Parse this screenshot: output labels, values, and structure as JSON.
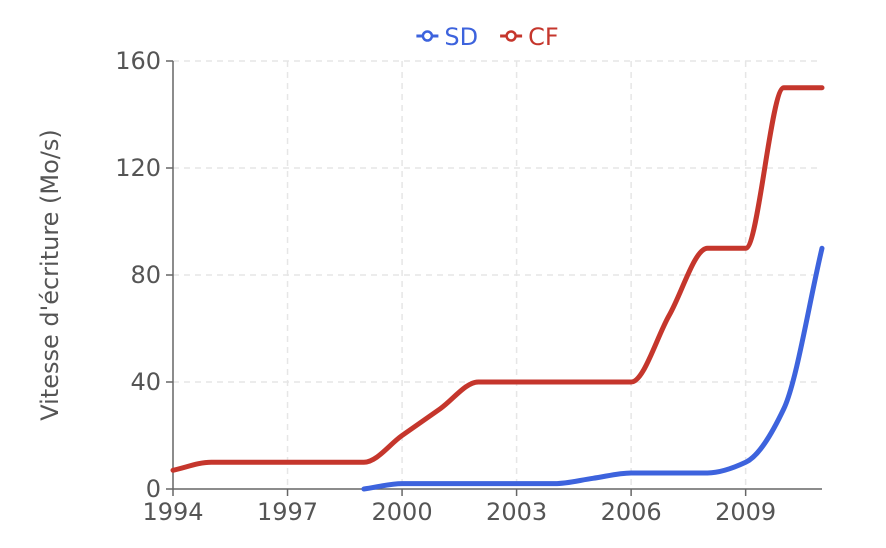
{
  "chart_data": {
    "type": "line",
    "ylabel": "Vitesse d'écriture (Mo/s)",
    "xlim": [
      1994,
      2011
    ],
    "ylim": [
      0,
      160
    ],
    "x_ticks": [
      1994,
      1997,
      2000,
      2003,
      2006,
      2009
    ],
    "y_ticks": [
      0,
      40,
      80,
      120,
      160
    ],
    "grid": true,
    "legend_position": "top-center",
    "series": [
      {
        "name": "SD",
        "color": "#3d63dd",
        "points": [
          {
            "x": 1999,
            "y": 0
          },
          {
            "x": 2000,
            "y": 2
          },
          {
            "x": 2001,
            "y": 2
          },
          {
            "x": 2002,
            "y": 2
          },
          {
            "x": 2003,
            "y": 2
          },
          {
            "x": 2004,
            "y": 2
          },
          {
            "x": 2005,
            "y": 4
          },
          {
            "x": 2006,
            "y": 6
          },
          {
            "x": 2007,
            "y": 6
          },
          {
            "x": 2008,
            "y": 6
          },
          {
            "x": 2009,
            "y": 10
          },
          {
            "x": 2010,
            "y": 30
          },
          {
            "x": 2011,
            "y": 90
          }
        ]
      },
      {
        "name": "CF",
        "color": "#c5362c",
        "points": [
          {
            "x": 1994,
            "y": 7
          },
          {
            "x": 1995,
            "y": 10
          },
          {
            "x": 1996,
            "y": 10
          },
          {
            "x": 1997,
            "y": 10
          },
          {
            "x": 1998,
            "y": 10
          },
          {
            "x": 1999,
            "y": 10
          },
          {
            "x": 2000,
            "y": 20
          },
          {
            "x": 2001,
            "y": 30
          },
          {
            "x": 2002,
            "y": 40
          },
          {
            "x": 2003,
            "y": 40
          },
          {
            "x": 2004,
            "y": 40
          },
          {
            "x": 2005,
            "y": 40
          },
          {
            "x": 2006,
            "y": 40
          },
          {
            "x": 2007,
            "y": 65
          },
          {
            "x": 2008,
            "y": 90
          },
          {
            "x": 2009,
            "y": 90
          },
          {
            "x": 2010,
            "y": 150
          },
          {
            "x": 2011,
            "y": 150
          }
        ]
      }
    ]
  }
}
